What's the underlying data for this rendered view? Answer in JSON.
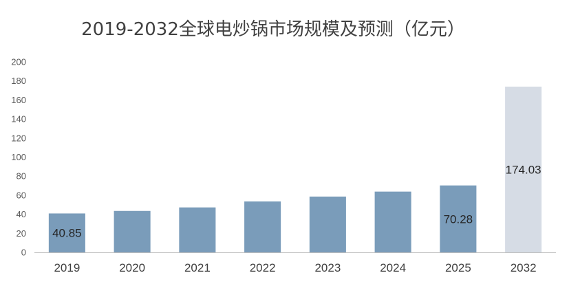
{
  "chart_data": {
    "type": "bar",
    "title": "2019-2032全球电炒锅市场规模及预测（亿元）",
    "categories": [
      "2019",
      "2020",
      "2021",
      "2022",
      "2023",
      "2024",
      "2025",
      "2032"
    ],
    "values": [
      40.85,
      43.5,
      47.2,
      53.5,
      58.6,
      63.8,
      70.28,
      174.03
    ],
    "data_labels": [
      "40.85",
      "",
      "",
      "",
      "",
      "",
      "70.28",
      "174.03"
    ],
    "forecast_categories": [
      "2032"
    ],
    "ylim": [
      0,
      200
    ],
    "yticks": [
      0,
      20,
      40,
      60,
      80,
      100,
      120,
      140,
      160,
      180,
      200
    ],
    "xlabel": "",
    "ylabel": "",
    "grid": false,
    "legend": "none",
    "colors": {
      "actual": "#7a9cba",
      "forecast": "#d6dce5",
      "axis": "#bfbfbf"
    }
  }
}
